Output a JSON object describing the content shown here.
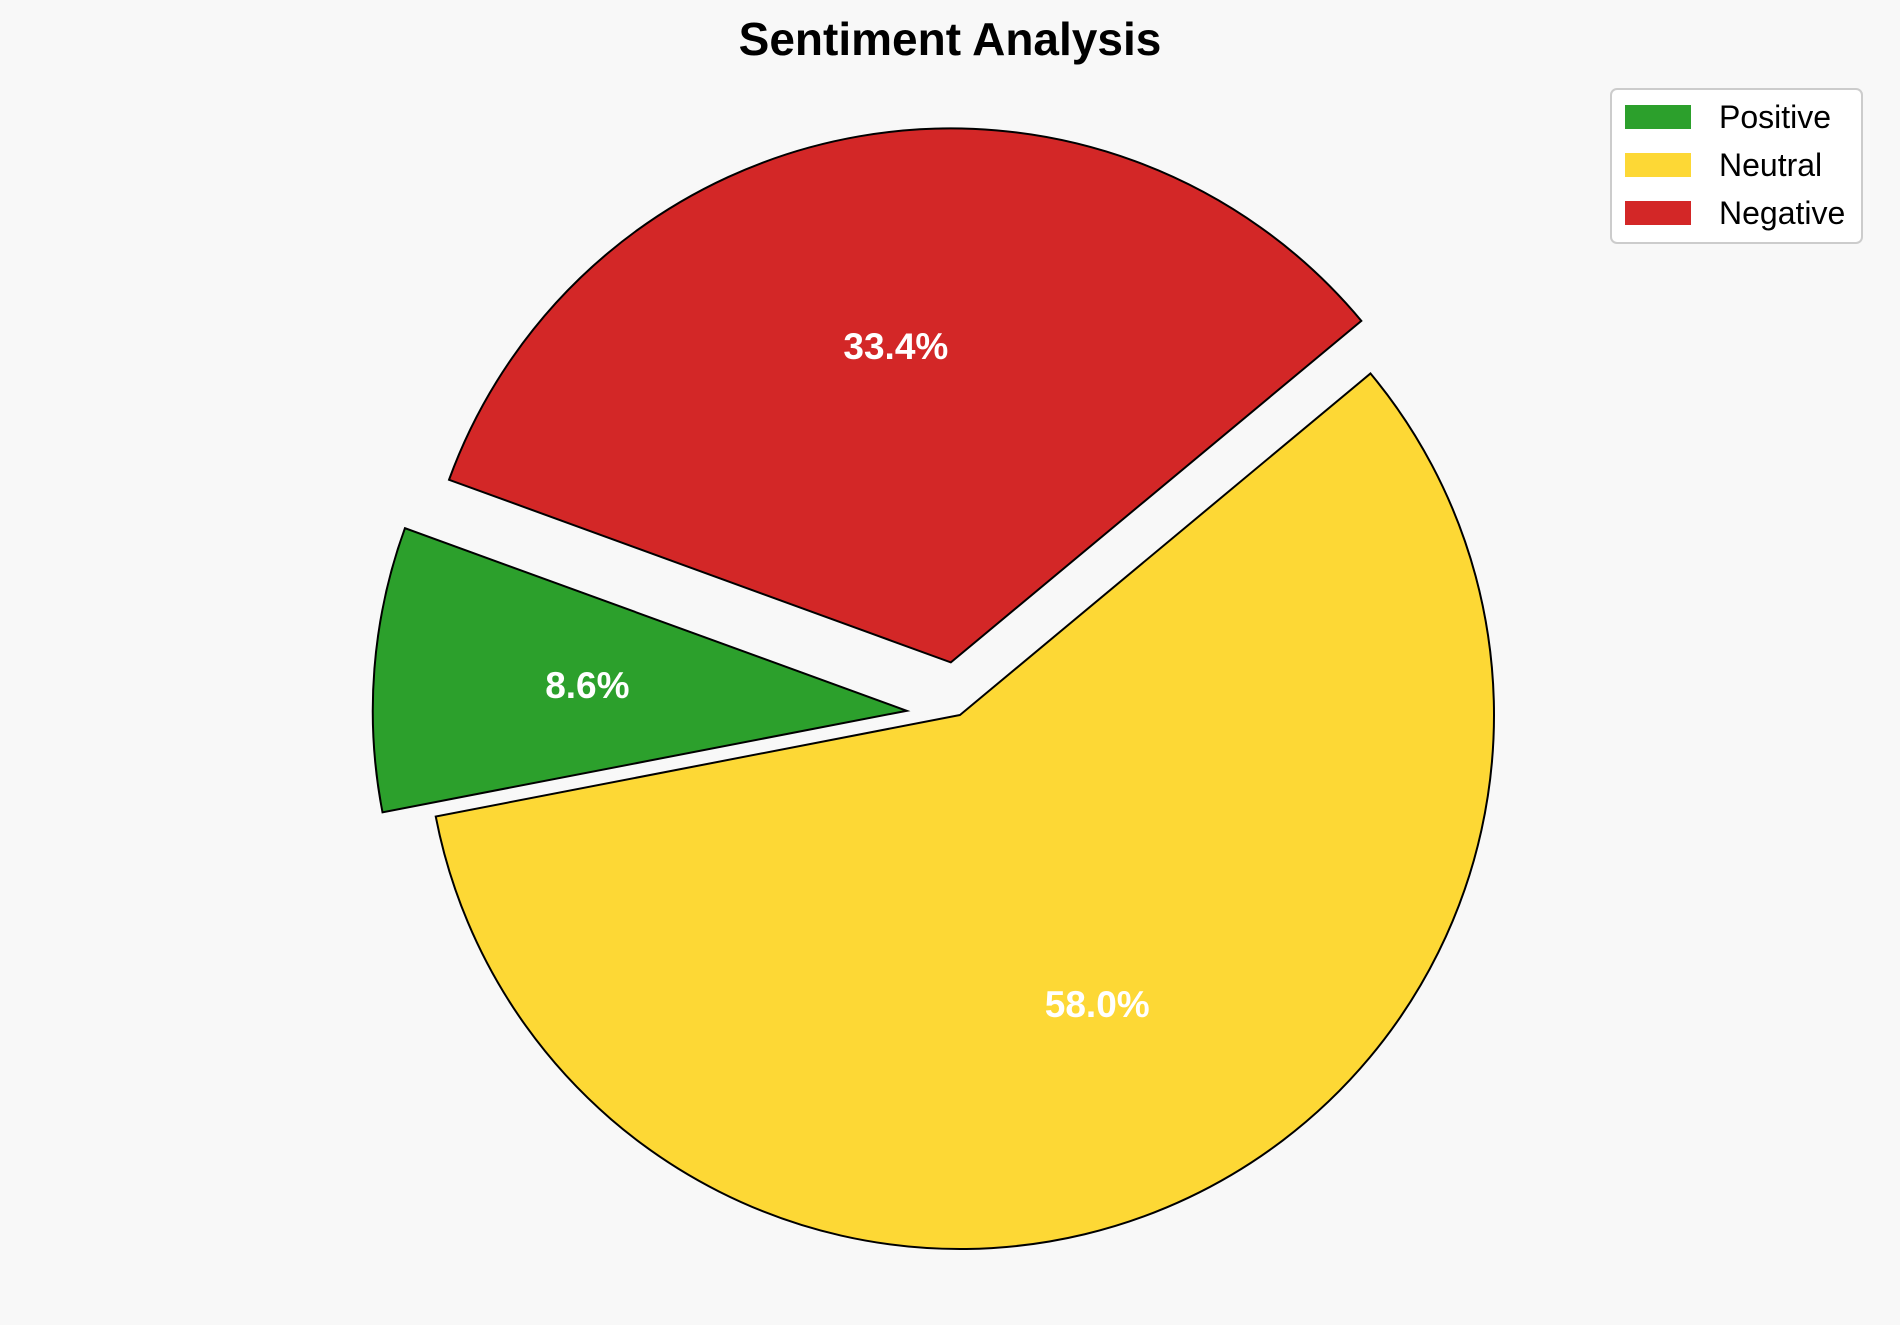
{
  "chart_data": {
    "type": "pie",
    "title": "Sentiment Analysis",
    "categories": [
      "Positive",
      "Neutral",
      "Negative"
    ],
    "values": [
      8.6,
      58.0,
      33.4
    ],
    "labels": [
      "8.6%",
      "58.0%",
      "33.4%"
    ],
    "colors": [
      "#2ca02c",
      "#fdd835",
      "#d32727"
    ],
    "exploded": [
      true,
      false,
      true
    ],
    "start_angle_deg": 160,
    "direction": "counterclockwise",
    "legend_position": "top-right",
    "background_color": "#f8f8f8",
    "edge_color": "#000000"
  }
}
